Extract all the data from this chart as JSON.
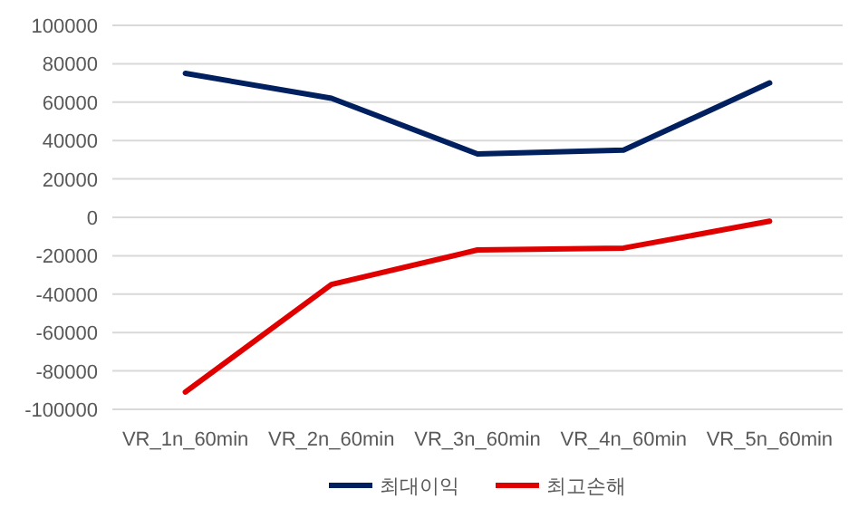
{
  "chart_data": {
    "type": "line",
    "categories": [
      "VR_1n_60min",
      "VR_2n_60min",
      "VR_3n_60min",
      "VR_4n_60min",
      "VR_5n_60min"
    ],
    "series": [
      {
        "name": "최대이익",
        "color": "#002060",
        "values": [
          75000,
          62000,
          33000,
          35000,
          70000
        ]
      },
      {
        "name": "최고손해",
        "color": "#e00000",
        "values": [
          -91000,
          -35000,
          -17000,
          -16000,
          -2000
        ]
      }
    ],
    "ylim": [
      -100000,
      100000
    ],
    "yticks": [
      -100000,
      -80000,
      -60000,
      -40000,
      -20000,
      0,
      20000,
      40000,
      60000,
      80000,
      100000
    ],
    "grid": "y",
    "legend": "bottom",
    "marker": "none",
    "line_style": "solid"
  }
}
